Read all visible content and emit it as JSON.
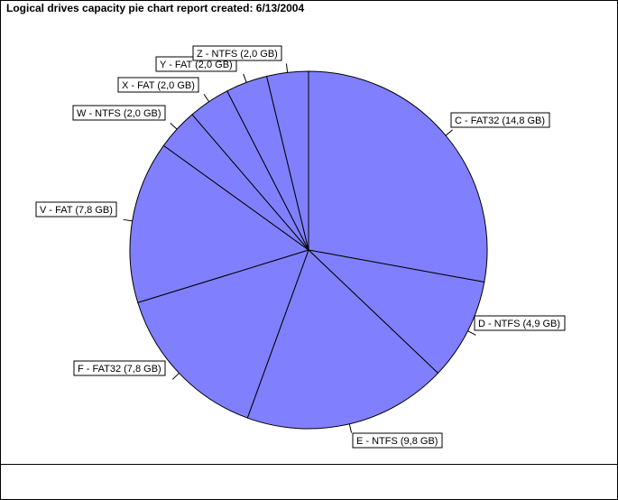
{
  "window": {
    "title": "Logical drives capacity pie chart report created: 6/13/2004"
  },
  "colors": {
    "slice_fill": "#8080ff",
    "slice_stroke": "#000000",
    "background": "#ffffff"
  },
  "chart_data": {
    "type": "pie",
    "title": "Logical drives capacity pie chart report created: 6/13/2004",
    "start": "top, clockwise",
    "slices": [
      {
        "label": "C - FAT32 (14,8 GB)",
        "value": 14.8
      },
      {
        "label": "D - NTFS (4,9 GB)",
        "value": 4.9
      },
      {
        "label": "E - NTFS (9,8 GB)",
        "value": 9.8
      },
      {
        "label": "F - FAT32 (7,8 GB)",
        "value": 7.8
      },
      {
        "label": "V - FAT (7,8 GB)",
        "value": 7.8
      },
      {
        "label": "W - NTFS (2,0 GB)",
        "value": 2.0
      },
      {
        "label": "X - FAT (2,0 GB)",
        "value": 2.0
      },
      {
        "label": "Y - FAT (2,0 GB)",
        "value": 2.0
      },
      {
        "label": "Z - NTFS (2,0 GB)",
        "value": 2.0
      }
    ]
  }
}
